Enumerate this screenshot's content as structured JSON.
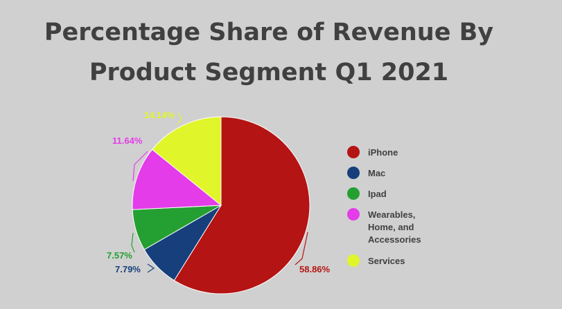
{
  "chart_data": {
    "type": "pie",
    "title": "Percentage Share of Revenue By Product Segment Q1 2021",
    "slices": [
      {
        "name": "iPhone",
        "value": 58.86,
        "label": "58.86%",
        "color": "#b51414"
      },
      {
        "name": "Mac",
        "value": 7.79,
        "label": "7.79%",
        "color": "#163f7c"
      },
      {
        "name": "Ipad",
        "value": 7.57,
        "label": "7.57%",
        "color": "#24a032"
      },
      {
        "name": "Wearables, Home, and Accessories",
        "legend_lines": [
          "Wearables,",
          "Home, and",
          "Accessories"
        ],
        "value": 11.64,
        "label": "11.64%",
        "color": "#e33ce8"
      },
      {
        "name": "Services",
        "value": 14.14,
        "label": "14.14%",
        "color": "#e0f52a"
      }
    ],
    "legend_position": "right"
  },
  "colors": {
    "background": "#d0d0d0",
    "title": "#404040",
    "legend_text": "#404040"
  }
}
